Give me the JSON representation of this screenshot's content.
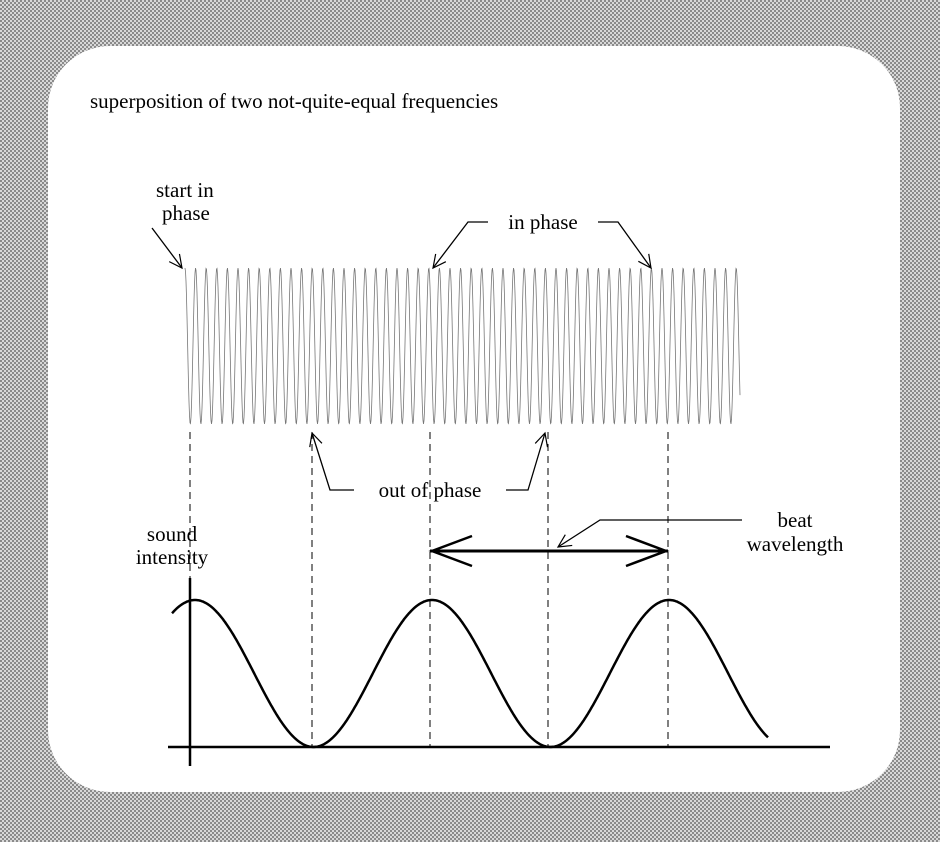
{
  "title": "superposition of two not-quite-equal frequencies",
  "labels": {
    "start_in_phase": [
      "start in",
      "phase"
    ],
    "in_phase": "in phase",
    "out_of_phase": "out of phase",
    "sound_intensity": [
      "sound",
      "intensity"
    ],
    "beat_wavelength": [
      "beat",
      "wavelength"
    ]
  }
}
